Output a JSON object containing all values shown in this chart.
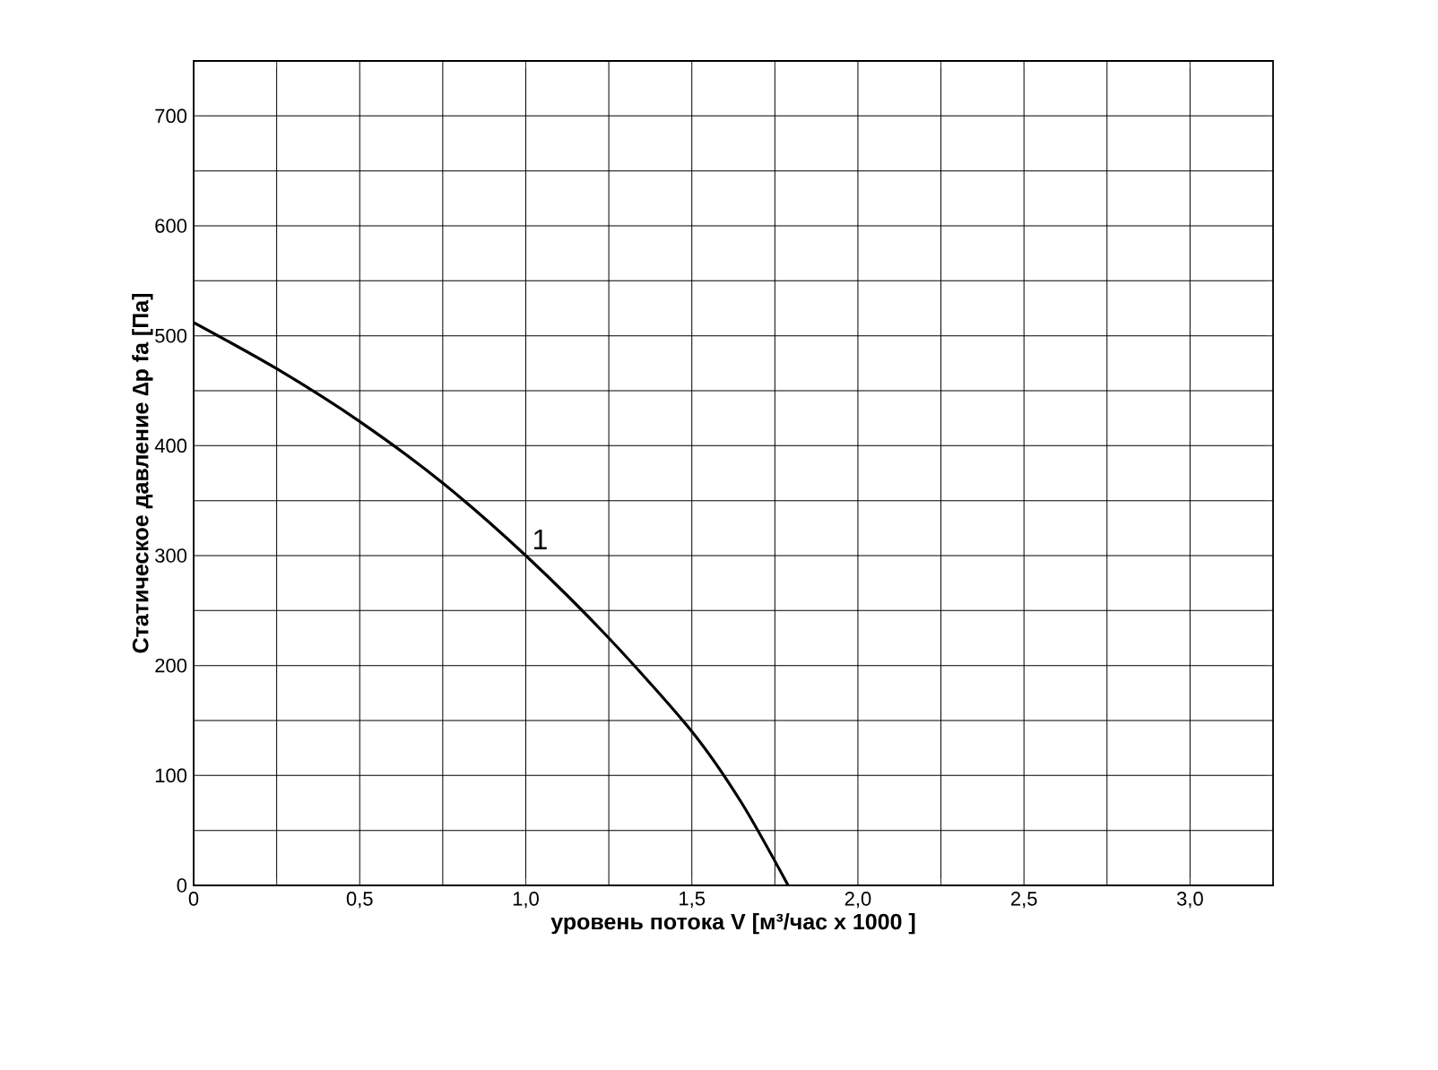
{
  "chart_data": {
    "type": "line",
    "xlabel": "уровень потока  V [м³/час x 1000 ]",
    "ylabel": "Статическое давление  ∆p fa [Па]",
    "series": [
      {
        "name": "1",
        "color": "#000000",
        "x": [
          0,
          0.25,
          0.5,
          0.75,
          1.0,
          1.25,
          1.5,
          1.65,
          1.79
        ],
        "values": [
          512,
          470,
          422,
          366,
          300,
          225,
          140,
          75,
          0
        ]
      }
    ],
    "xlim": [
      0,
      3.25
    ],
    "ylim": [
      0,
      750
    ],
    "xticks": [
      0,
      {
        "value": 0.25,
        "label": null
      },
      {
        "value": 0.5,
        "label": "0,5"
      },
      {
        "value": 0.75,
        "label": null
      },
      {
        "value": 1.0,
        "label": "1,0"
      },
      {
        "value": 1.25,
        "label": null
      },
      {
        "value": 1.5,
        "label": "1,5"
      },
      {
        "value": 1.75,
        "label": null
      },
      {
        "value": 2.0,
        "label": "2,0"
      },
      {
        "value": 2.25,
        "label": null
      },
      {
        "value": 2.5,
        "label": "2,5"
      },
      {
        "value": 2.75,
        "label": null
      },
      {
        "value": 3.0,
        "label": "3,0"
      }
    ],
    "yticks": [
      0,
      {
        "value": 50,
        "label": null
      },
      100,
      {
        "value": 150,
        "label": null
      },
      200,
      {
        "value": 250,
        "label": null
      },
      300,
      {
        "value": 350,
        "label": null
      },
      400,
      {
        "value": 450,
        "label": null
      },
      500,
      {
        "value": 550,
        "label": null
      },
      600,
      {
        "value": 650,
        "label": null
      },
      700
    ],
    "grid": true,
    "legend": false,
    "marker": "none",
    "line_style": "solid"
  }
}
